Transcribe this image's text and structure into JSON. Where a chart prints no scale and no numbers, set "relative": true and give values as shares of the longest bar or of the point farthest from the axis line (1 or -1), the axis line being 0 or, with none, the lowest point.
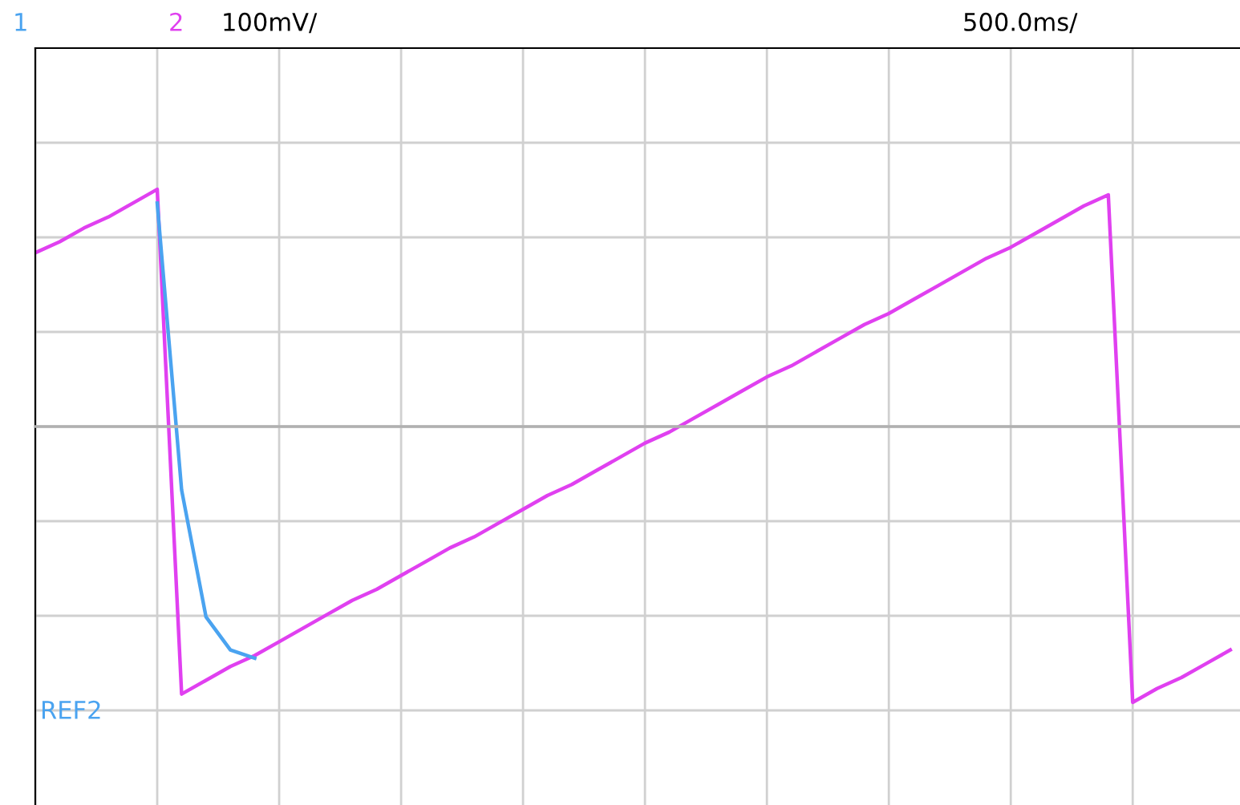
{
  "chart_data": {
    "type": "line",
    "relative": true,
    "grid": true,
    "legend": false,
    "tick_labels": false,
    "marker": "none",
    "line_style": "solid",
    "categories": [
      null,
      null,
      null,
      null,
      null,
      null,
      null,
      null,
      null,
      null,
      null,
      null,
      null,
      null,
      null,
      null,
      null,
      null,
      null,
      null,
      null,
      null,
      null,
      null,
      null,
      null,
      null,
      null,
      null,
      null,
      null,
      null,
      null,
      null,
      null,
      null,
      null,
      null,
      null,
      null,
      null,
      null,
      null,
      null,
      null,
      null,
      null,
      null,
      null,
      null
    ],
    "series": [
      {
        "color": "#e040f0",
        "values": [
          0.63,
          0.67,
          0.72,
          0.76,
          0.81,
          0.86,
          -0.97,
          -0.92,
          -0.87,
          -0.83,
          -0.78,
          -0.73,
          -0.68,
          -0.63,
          -0.59,
          -0.54,
          -0.49,
          -0.44,
          -0.4,
          -0.35,
          -0.3,
          -0.25,
          -0.21,
          -0.16,
          -0.11,
          -0.06,
          -0.02,
          0.03,
          0.08,
          0.13,
          0.18,
          0.22,
          0.27,
          0.32,
          0.37,
          0.41,
          0.46,
          0.51,
          0.56,
          0.61,
          0.65,
          0.7,
          0.75,
          0.8,
          0.84,
          -1,
          -0.95,
          -0.91,
          -0.86,
          -0.81
        ]
      },
      {
        "color": "#4aa3f0",
        "values": [
          null,
          null,
          null,
          null,
          null,
          0.81,
          -0.23,
          -0.69,
          -0.81,
          -0.84,
          null,
          null,
          null,
          null,
          null,
          null,
          null,
          null,
          null,
          null,
          null,
          null,
          null,
          null,
          null,
          null,
          null,
          null,
          null,
          null,
          null,
          null,
          null,
          null,
          null,
          null,
          null,
          null,
          null,
          null,
          null,
          null,
          null,
          null,
          null,
          null,
          null,
          null,
          null,
          null
        ]
      }
    ],
    "annotations": [
      "1",
      "2",
      "100mV/",
      "500.0ms/",
      "REF2"
    ]
  }
}
